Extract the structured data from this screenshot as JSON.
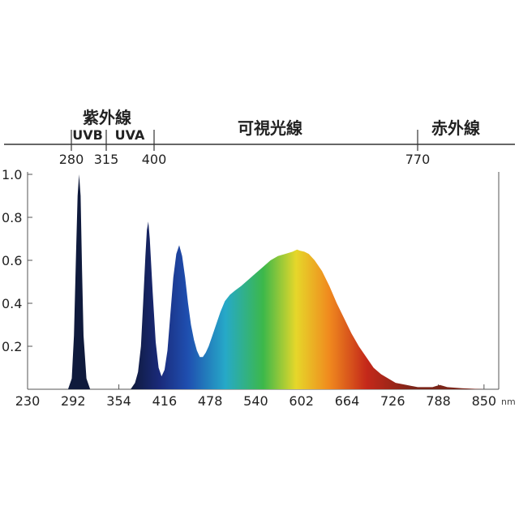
{
  "chart_data": {
    "type": "area",
    "x_unit": "nm",
    "xlim": [
      230,
      870
    ],
    "ylim": [
      0,
      1.0
    ],
    "x_ticks": [
      230,
      292,
      354,
      416,
      478,
      540,
      602,
      664,
      726,
      788,
      850
    ],
    "y_ticks": [
      0.2,
      0.4,
      0.6,
      0.8,
      1.0
    ],
    "y_tick_labels": [
      "0.2",
      "0.4",
      "0.6",
      "0.8",
      "1.0"
    ],
    "bands": [
      {
        "label": "紫外線",
        "range": [
          280,
          400
        ]
      },
      {
        "label": "UVB",
        "range": [
          280,
          315
        ]
      },
      {
        "label": "UVA",
        "range": [
          315,
          400
        ]
      },
      {
        "label": "可視光線",
        "range": [
          400,
          770
        ]
      },
      {
        "label": "赤外線",
        "range": [
          770,
          870
        ]
      }
    ],
    "band_boundaries": [
      280,
      315,
      400,
      770
    ],
    "series": [
      {
        "x": [
          270,
          285,
          290,
          293,
          296,
          298,
          300,
          302,
          304,
          306,
          310,
          315,
          330,
          370,
          376,
          380,
          384,
          387,
          390,
          392,
          394,
          396,
          400,
          404,
          408,
          412,
          416,
          420,
          424,
          428,
          432,
          436,
          440,
          444,
          448,
          452,
          456,
          460,
          464,
          468,
          472,
          476,
          480,
          486,
          492,
          498,
          505,
          512,
          520,
          530,
          540,
          550,
          560,
          570,
          580,
          590,
          596,
          600,
          606,
          612,
          620,
          630,
          640,
          650,
          660,
          670,
          680,
          690,
          700,
          710,
          720,
          730,
          745,
          760,
          780,
          785,
          790,
          795,
          800,
          820,
          850,
          860
        ],
        "values": [
          0,
          0,
          0.05,
          0.25,
          0.65,
          0.9,
          1.0,
          0.9,
          0.55,
          0.25,
          0.05,
          0,
          0,
          0,
          0.03,
          0.08,
          0.2,
          0.4,
          0.62,
          0.74,
          0.78,
          0.7,
          0.45,
          0.22,
          0.1,
          0.06,
          0.09,
          0.18,
          0.35,
          0.52,
          0.63,
          0.67,
          0.62,
          0.52,
          0.4,
          0.3,
          0.23,
          0.18,
          0.15,
          0.15,
          0.17,
          0.2,
          0.24,
          0.3,
          0.36,
          0.41,
          0.44,
          0.46,
          0.48,
          0.51,
          0.54,
          0.57,
          0.6,
          0.62,
          0.63,
          0.64,
          0.65,
          0.645,
          0.64,
          0.63,
          0.6,
          0.55,
          0.48,
          0.4,
          0.33,
          0.26,
          0.2,
          0.15,
          0.1,
          0.07,
          0.05,
          0.03,
          0.02,
          0.01,
          0.01,
          0.015,
          0.02,
          0.015,
          0.01,
          0.005,
          0,
          0
        ]
      }
    ]
  },
  "colors": {
    "axis": "#444444",
    "deep_blue": "#0f1a3c",
    "violet_blue": "#1a2a7a",
    "blue": "#1f4fb0",
    "cyan": "#26a9c8",
    "green": "#3cb84a",
    "yellow": "#e6d72a",
    "orange": "#f08a1e",
    "red": "#c4281a",
    "dark_red": "#7a2418"
  }
}
